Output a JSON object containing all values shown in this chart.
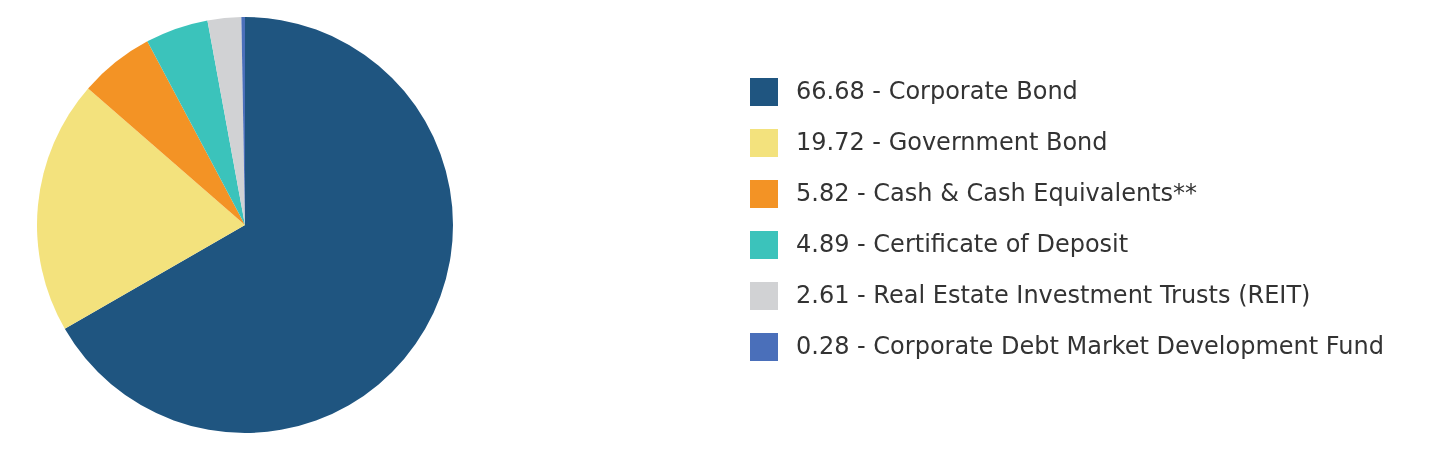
{
  "chart_data": {
    "type": "pie",
    "categories": [
      "66.68 - Corporate Bond",
      "19.72 - Government Bond",
      "5.82 - Cash & Cash Equivalents**",
      "4.89 - Certificate of Deposit",
      "2.61 - Real Estate Investment Trusts (REIT)",
      "0.28 - Corporate Debt Market Development Fund"
    ],
    "values": [
      66.68,
      19.72,
      5.82,
      4.89,
      2.61,
      0.28
    ],
    "colors": [
      "#1f5580",
      "#f3e27d",
      "#f39325",
      "#3bc3bb",
      "#d1d2d4",
      "#4a6fba"
    ],
    "legend": "right"
  }
}
